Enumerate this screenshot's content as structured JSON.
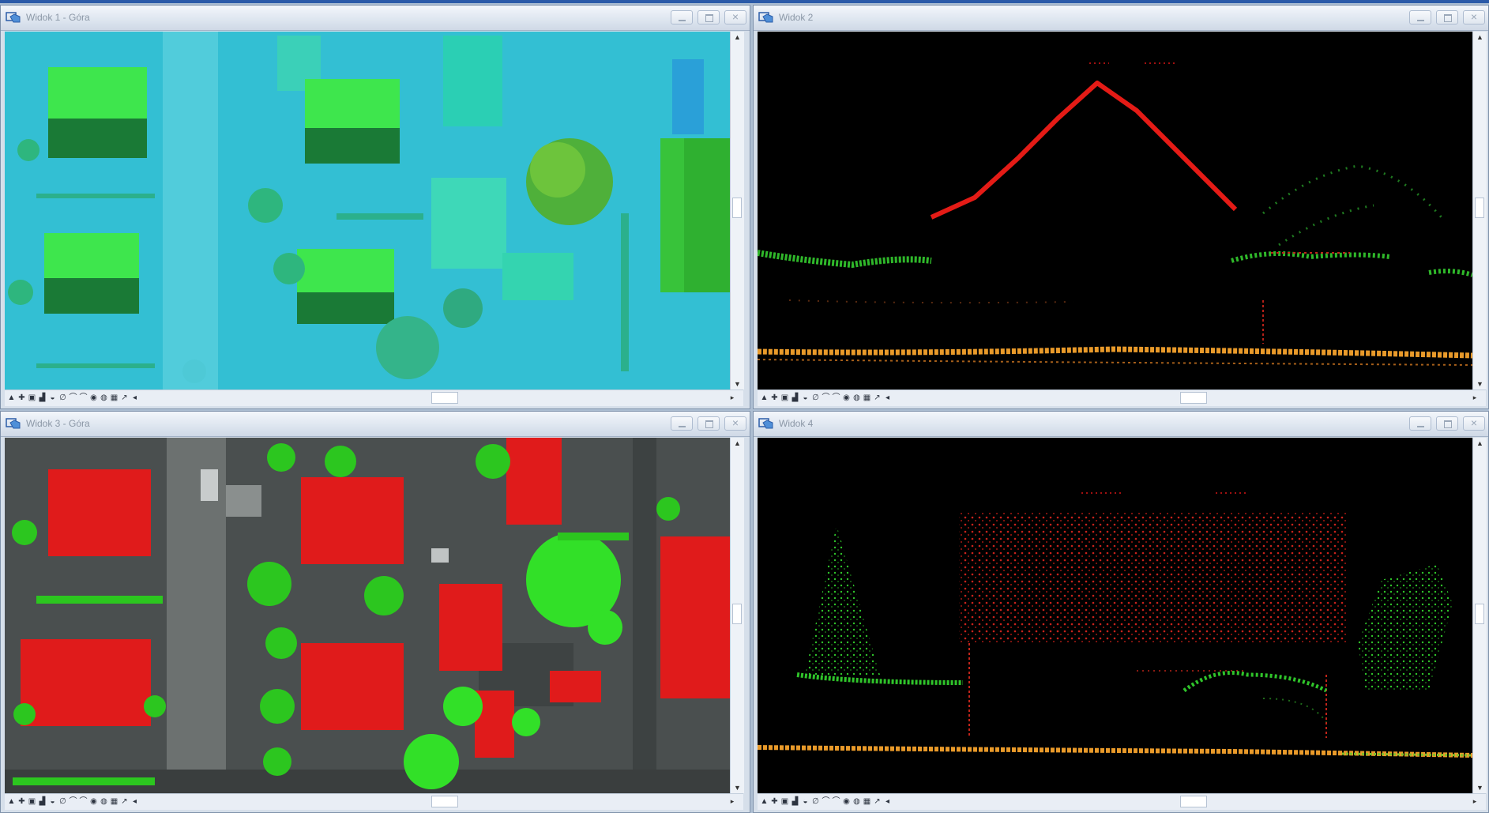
{
  "views": [
    {
      "title": "Widok 1 - Góra",
      "display": "intensity-plan"
    },
    {
      "title": "Widok 2",
      "display": "profile-roof-section"
    },
    {
      "title": "Widok 3 - Góra",
      "display": "classified-plan"
    },
    {
      "title": "Widok 4",
      "display": "profile-house-elevation"
    }
  ],
  "window_buttons": [
    "minimize-button",
    "maximize-button",
    "close-button"
  ],
  "view_toolbar_icons": [
    "▲",
    "✚",
    "▣",
    "▟",
    "◒",
    "∅",
    "⌒",
    "⌒",
    "◉",
    "◍",
    "▦",
    "↗",
    "◂"
  ],
  "colors": {
    "intensity_bg": "#35c3d6",
    "house_roof_light": "#3ee64d",
    "house_roof_dark": "#1a7a36",
    "classified_bg": "#4a4f4f",
    "building_class": "#e01b1b",
    "vegetation_class": "#32e028",
    "ground_class": "#e99a2a",
    "profile_bg": "#000000",
    "roof_profile": "#e41b16"
  }
}
